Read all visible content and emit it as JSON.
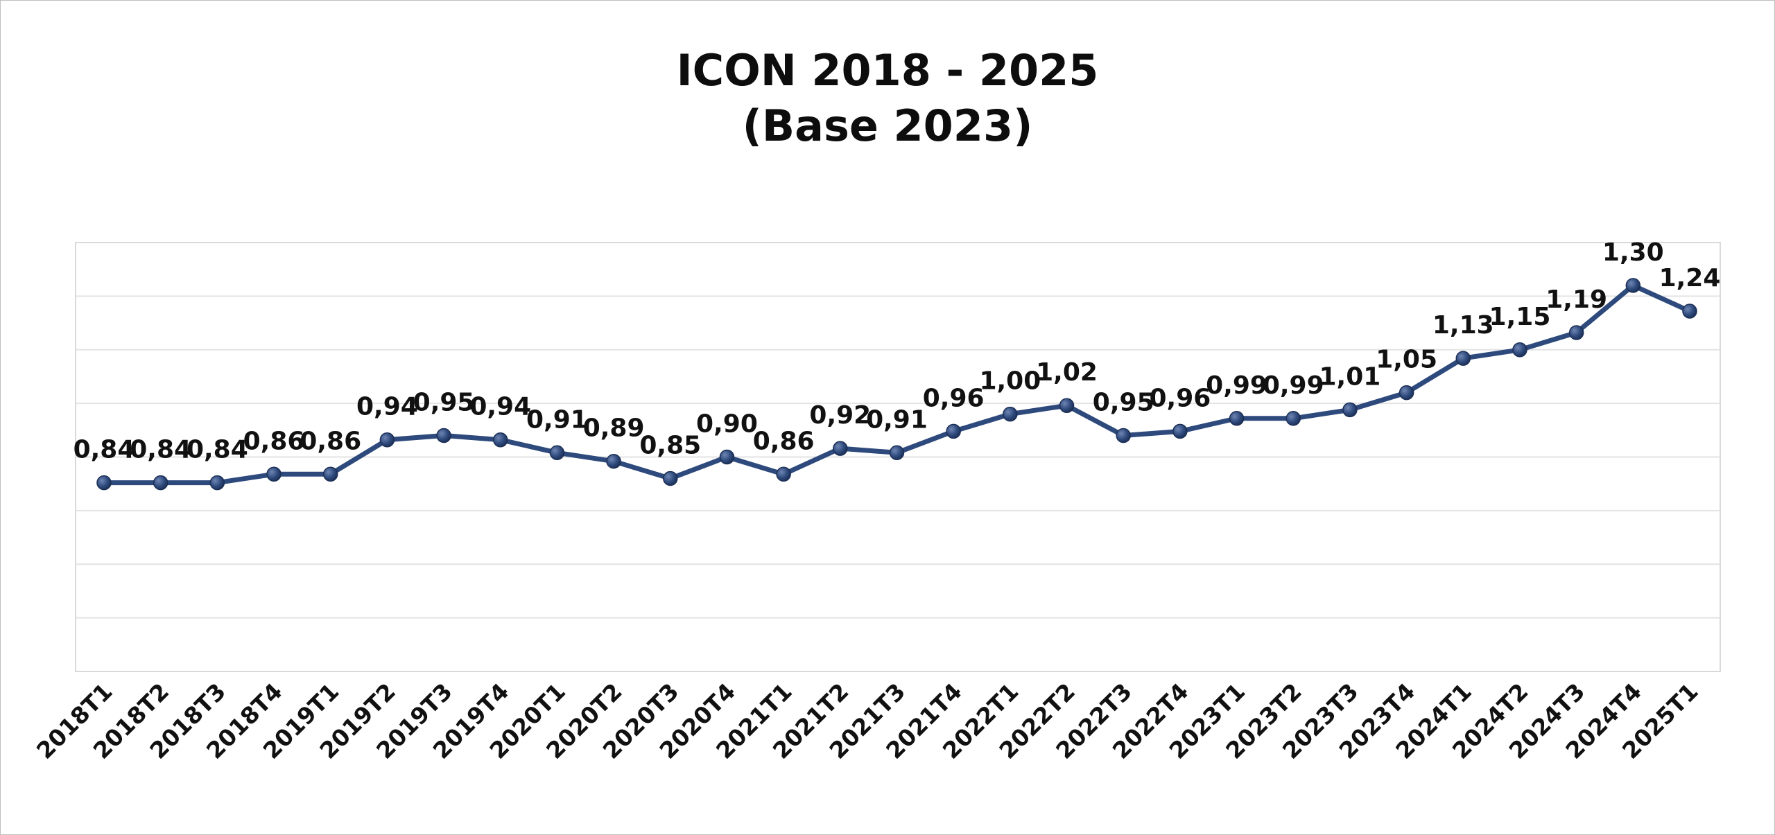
{
  "chart_data": {
    "type": "line",
    "title": "ICON 2018 - 2025",
    "subtitle": "(Base 2023)",
    "xlabel": "",
    "ylabel": "",
    "ylim": [
      0.4,
      1.4
    ],
    "grid": true,
    "legend": "none",
    "categories": [
      "2018T1",
      "2018T2",
      "2018T3",
      "2018T4",
      "2019T1",
      "2019T2",
      "2019T3",
      "2019T4",
      "2020T1",
      "2020T2",
      "2020T3",
      "2020T4",
      "2021T1",
      "2021T2",
      "2021T3",
      "2021T4",
      "2022T1",
      "2022T2",
      "2022T3",
      "2022T4",
      "2023T1",
      "2023T2",
      "2023T3",
      "2023T4",
      "2024T1",
      "2024T2",
      "2024T3",
      "2024T4",
      "2025T1"
    ],
    "series": [
      {
        "values": [
          0.84,
          0.84,
          0.84,
          0.86,
          0.86,
          0.94,
          0.95,
          0.94,
          0.91,
          0.89,
          0.85,
          0.9,
          0.86,
          0.92,
          0.91,
          0.96,
          1.0,
          1.02,
          0.95,
          0.96,
          0.99,
          0.99,
          1.01,
          1.05,
          1.13,
          1.15,
          1.19,
          1.3,
          1.24
        ],
        "labels": [
          "0,84",
          "0,84",
          "0,84",
          "0,86",
          "0,86",
          "0,94",
          "0,95",
          "0,94",
          "0,91",
          "0,89",
          "0,85",
          "0,90",
          "0,86",
          "0,92",
          "0,91",
          "0,96",
          "1,00",
          "1,02",
          "0,95",
          "0,96",
          "0,99",
          "0,99",
          "1,01",
          "1,05",
          "1,13",
          "1,15",
          "1,19",
          "1,30",
          "1,24"
        ],
        "color": "#2e4a7d"
      }
    ]
  }
}
